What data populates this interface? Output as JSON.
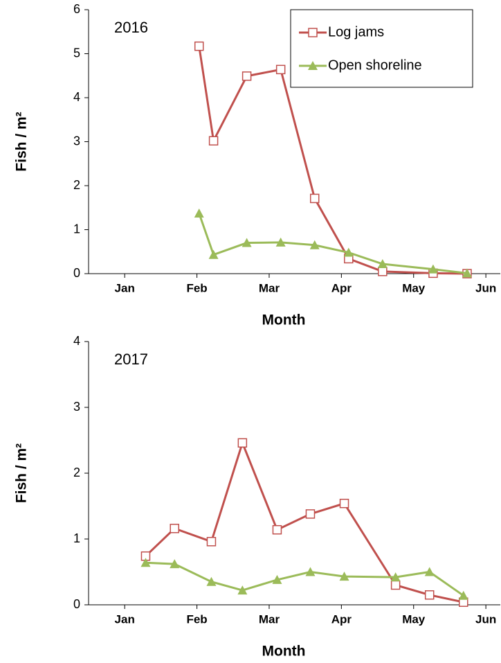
{
  "chart_data": [
    {
      "type": "line",
      "annotation": "2016",
      "x_label": "Month",
      "y_label": "Fish / m²",
      "xlim": [
        0,
        5.7
      ],
      "xticks": [
        {
          "value": 0.5,
          "label": "Jan"
        },
        {
          "value": 1.5,
          "label": "Feb"
        },
        {
          "value": 2.5,
          "label": "Mar"
        },
        {
          "value": 3.5,
          "label": "Apr"
        },
        {
          "value": 4.5,
          "label": "May"
        },
        {
          "value": 5.5,
          "label": "Jun"
        }
      ],
      "ylim": [
        0,
        6
      ],
      "yticks": [
        0,
        1,
        2,
        3,
        4,
        5,
        6
      ],
      "legend": "upper right",
      "x": [
        1.53,
        1.73,
        2.19,
        2.66,
        3.13,
        3.6,
        4.07,
        4.77,
        5.24
      ],
      "series": [
        {
          "name": "Log jams",
          "color": "#c0504d",
          "marker": "square",
          "values": [
            5.17,
            3.02,
            4.49,
            4.64,
            1.71,
            0.34,
            0.05,
            0.01,
            0
          ]
        },
        {
          "name": "Open shoreline",
          "color": "#9bbb59",
          "marker": "triangle",
          "values": [
            1.37,
            0.43,
            0.7,
            0.71,
            0.65,
            0.48,
            0.22,
            0.1,
            0.01
          ]
        }
      ]
    },
    {
      "type": "line",
      "annotation": "2017",
      "x_label": "Month",
      "y_label": "Fish / m²",
      "xlim": [
        0,
        5.7
      ],
      "xticks": [
        {
          "value": 0.5,
          "label": "Jan"
        },
        {
          "value": 1.5,
          "label": "Feb"
        },
        {
          "value": 2.5,
          "label": "Mar"
        },
        {
          "value": 3.5,
          "label": "Apr"
        },
        {
          "value": 4.5,
          "label": "May"
        },
        {
          "value": 5.5,
          "label": "Jun"
        }
      ],
      "ylim": [
        0,
        4
      ],
      "yticks": [
        0,
        1,
        2,
        3,
        4
      ],
      "x": [
        0.79,
        1.19,
        1.7,
        2.13,
        2.61,
        3.07,
        3.54,
        4.25,
        4.72,
        5.19
      ],
      "series": [
        {
          "name": "Log jams",
          "color": "#c0504d",
          "marker": "square",
          "values": [
            0.74,
            1.16,
            0.96,
            2.46,
            1.14,
            1.38,
            1.54,
            0.3,
            0.15,
            0.04
          ]
        },
        {
          "name": "Open shoreline",
          "color": "#9bbb59",
          "marker": "triangle",
          "values": [
            0.64,
            0.62,
            0.35,
            0.22,
            0.38,
            0.5,
            0.43,
            0.42,
            0.5,
            0.14
          ]
        }
      ]
    }
  ]
}
